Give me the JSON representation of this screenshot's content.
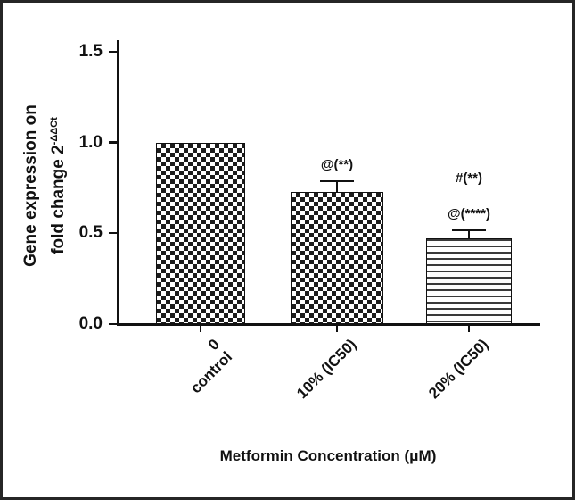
{
  "chart_data": {
    "type": "bar",
    "title": "",
    "categories": [
      "0\ncontrol",
      "10% (IC50)",
      "20% (IC50)"
    ],
    "values": [
      1.0,
      0.73,
      0.47
    ],
    "errors": [
      0,
      0.06,
      0.05
    ],
    "bar_patterns": [
      "checker",
      "checker",
      "hlines"
    ],
    "annotations": [
      [],
      [
        "@(**)"
      ],
      [
        "#(**)",
        "@(****)"
      ]
    ],
    "xlabel": "Metformin Concentration (μM)",
    "ylabel_line1": "Gene expression on",
    "ylabel_line2_base": "fold change 2",
    "ylabel_exponent": "-ΔΔCt",
    "yticks": [
      "0.0",
      "0.5",
      "1.0",
      "1.5"
    ],
    "ylim": [
      0,
      1.5
    ],
    "grid": false,
    "legend": false,
    "colors": {
      "ink": "#111111",
      "background": "#ffffff",
      "frame": "#262626"
    }
  }
}
